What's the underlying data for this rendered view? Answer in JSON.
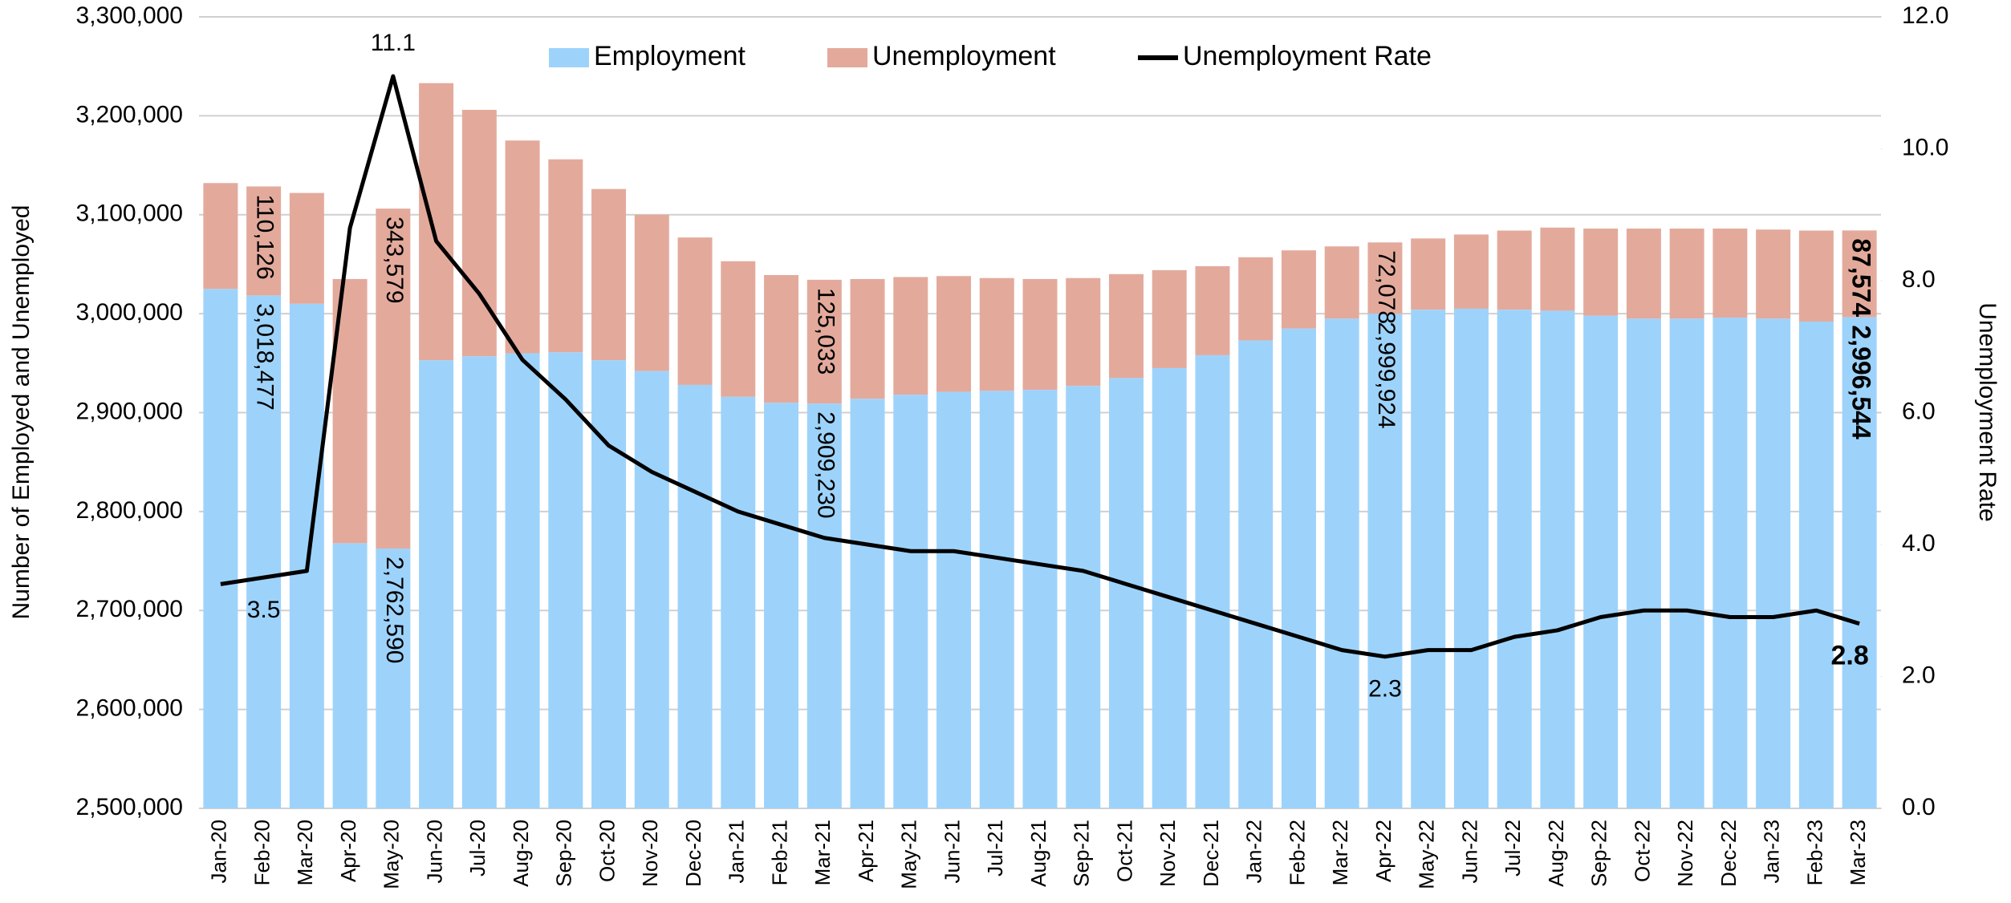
{
  "chart_data": {
    "type": "bar-line",
    "y_label": "Number of Employed and Unemployed",
    "y2_label": "Unemployment Rate",
    "categories": [
      "Jan-20",
      "Feb-20",
      "Mar-20",
      "Apr-20",
      "May-20",
      "Jun-20",
      "Jul-20",
      "Aug-20",
      "Sep-20",
      "Oct-20",
      "Nov-20",
      "Dec-20",
      "Jan-21",
      "Feb-21",
      "Mar-21",
      "Apr-21",
      "May-21",
      "Jun-21",
      "Jul-21",
      "Aug-21",
      "Sep-21",
      "Oct-21",
      "Nov-21",
      "Dec-21",
      "Jan-22",
      "Feb-22",
      "Mar-22",
      "Apr-22",
      "May-22",
      "Jun-22",
      "Jul-22",
      "Aug-22",
      "Sep-22",
      "Oct-22",
      "Nov-22",
      "Dec-22",
      "Jan-23",
      "Feb-23",
      "Mar-23"
    ],
    "series": [
      {
        "name": "Employment",
        "color": "#9dd3fb",
        "values": [
          3025000,
          3018477,
          3010000,
          2768000,
          2762590,
          2953000,
          2957000,
          2960000,
          2961000,
          2953000,
          2942000,
          2928000,
          2916000,
          2910000,
          2909230,
          2914000,
          2918000,
          2921000,
          2922000,
          2923000,
          2927000,
          2935000,
          2945000,
          2958000,
          2973000,
          2985000,
          2995000,
          2999924,
          3004000,
          3005000,
          3004000,
          3003000,
          2998000,
          2995000,
          2995000,
          2996000,
          2995000,
          2992000,
          2996544
        ],
        "value_labels": [
          null,
          "3,018,477",
          null,
          null,
          "2,762,590",
          null,
          null,
          null,
          null,
          null,
          null,
          null,
          null,
          null,
          "2,909,230",
          null,
          null,
          null,
          null,
          null,
          null,
          null,
          null,
          null,
          null,
          null,
          null,
          "2,999,924",
          null,
          null,
          null,
          null,
          null,
          null,
          null,
          null,
          null,
          null,
          "2,996,544"
        ]
      },
      {
        "name": "Unemployment",
        "color": "#e3aa9c",
        "values": [
          107000,
          110126,
          112000,
          267000,
          343579,
          280000,
          249000,
          215000,
          195000,
          173000,
          158000,
          149000,
          137000,
          129000,
          125033,
          121000,
          119000,
          117000,
          114000,
          112000,
          109000,
          105000,
          99000,
          90000,
          84000,
          79000,
          73000,
          72078,
          72000,
          75000,
          80000,
          84000,
          88000,
          91000,
          91000,
          90000,
          90000,
          92000,
          87574
        ],
        "value_labels": [
          null,
          "110,126",
          null,
          null,
          "343,579",
          null,
          null,
          null,
          null,
          null,
          null,
          null,
          null,
          null,
          "125,033",
          null,
          null,
          null,
          null,
          null,
          null,
          null,
          null,
          null,
          null,
          null,
          null,
          "72,078",
          null,
          null,
          null,
          null,
          null,
          null,
          null,
          null,
          null,
          null,
          "87,574"
        ]
      },
      {
        "name": "Unemployment Rate",
        "color": "#000000",
        "type": "line",
        "axis": "y2",
        "values": [
          3.4,
          3.5,
          3.6,
          8.8,
          11.1,
          8.6,
          7.8,
          6.8,
          6.2,
          5.5,
          5.1,
          4.8,
          4.5,
          4.3,
          4.1,
          4.0,
          3.9,
          3.9,
          3.8,
          3.7,
          3.6,
          3.4,
          3.2,
          3.0,
          2.8,
          2.6,
          2.4,
          2.3,
          2.4,
          2.4,
          2.6,
          2.7,
          2.9,
          3.0,
          3.0,
          2.9,
          2.9,
          3.0,
          2.8
        ],
        "value_labels": [
          null,
          "3.5",
          null,
          null,
          "11.1",
          null,
          null,
          null,
          null,
          null,
          null,
          null,
          null,
          null,
          null,
          null,
          null,
          null,
          null,
          null,
          null,
          null,
          null,
          null,
          null,
          null,
          null,
          "2.3",
          null,
          null,
          null,
          null,
          null,
          null,
          null,
          null,
          null,
          null,
          "2.8"
        ]
      }
    ],
    "ylim": [
      2500000,
      3300000
    ],
    "yticks": [
      {
        "value": 2500000,
        "label": "2,500,000"
      },
      {
        "value": 2600000,
        "label": "2,600,000"
      },
      {
        "value": 2700000,
        "label": "2,700,000"
      },
      {
        "value": 2800000,
        "label": "2,800,000"
      },
      {
        "value": 2900000,
        "label": "2,900,000"
      },
      {
        "value": 3000000,
        "label": "3,000,000"
      },
      {
        "value": 3100000,
        "label": "3,100,000"
      },
      {
        "value": 3200000,
        "label": "3,200,000"
      },
      {
        "value": 3300000,
        "label": "3,300,000"
      }
    ],
    "y2lim": [
      0,
      12
    ],
    "y2ticks": [
      {
        "value": 0,
        "label": "0.0"
      },
      {
        "value": 2,
        "label": "2.0"
      },
      {
        "value": 4,
        "label": "4.0"
      },
      {
        "value": 6,
        "label": "6.0"
      },
      {
        "value": 8,
        "label": "8.0"
      },
      {
        "value": 10,
        "label": "10.0"
      },
      {
        "value": 12,
        "label": "12.0"
      }
    ],
    "grid": true
  }
}
